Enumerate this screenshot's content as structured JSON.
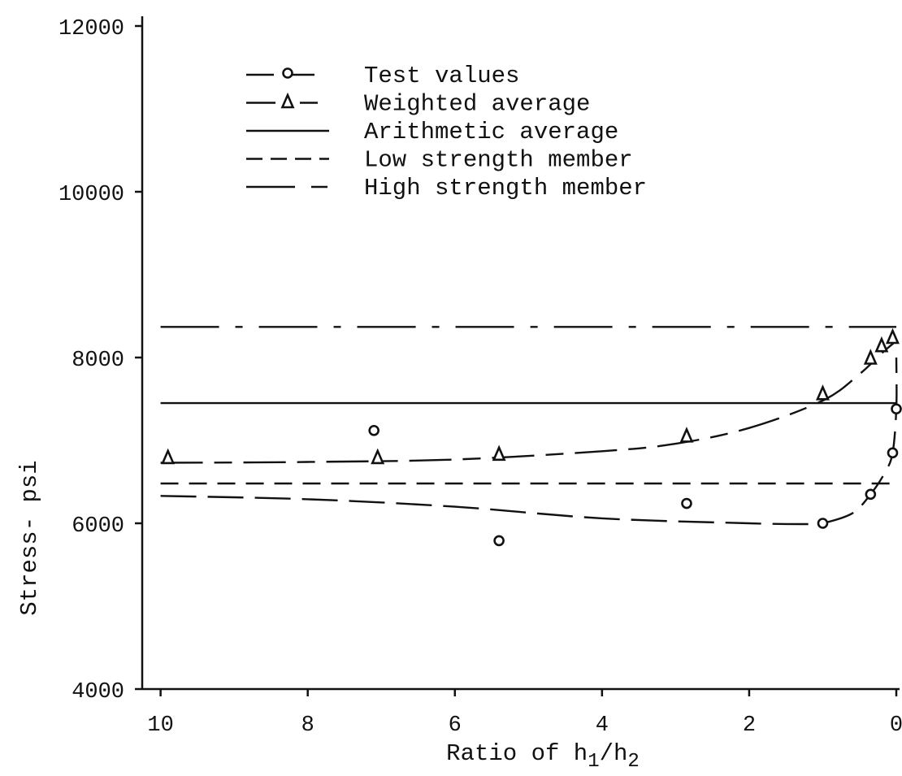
{
  "chart_data": {
    "type": "line",
    "xlabel": "Ratio of h",
    "xlabel_sub1": "1",
    "xlabel_mid": "/h",
    "xlabel_sub2": "2",
    "ylabel": "Stress- psi",
    "x_reversed": true,
    "xlim": [
      10.25,
      0
    ],
    "ylim": [
      4000,
      12000
    ],
    "xticks": [
      10,
      8,
      6,
      4,
      2,
      0
    ],
    "yticks": [
      4000,
      6000,
      8000,
      10000,
      12000
    ],
    "xtick_labels": [
      "10",
      "8",
      "6",
      "4",
      "2",
      "0"
    ],
    "ytick_labels": [
      "4000",
      "6000",
      "8000",
      "10000",
      "12000"
    ],
    "grid": false,
    "legend_position": "top-left",
    "series": [
      {
        "name": "Test values",
        "marker": "circle",
        "style": "long-dash",
        "points": [
          [
            7.1,
            7120
          ],
          [
            5.4,
            5790
          ],
          [
            2.85,
            6240
          ],
          [
            1.0,
            6000
          ],
          [
            0.35,
            6350
          ],
          [
            0.05,
            6850
          ],
          [
            0.0,
            7380
          ]
        ],
        "curve": [
          [
            10.0,
            6330
          ],
          [
            8.0,
            6290
          ],
          [
            6.0,
            6200
          ],
          [
            4.0,
            6060
          ],
          [
            2.0,
            6000
          ],
          [
            1.2,
            5990
          ],
          [
            1.0,
            6000
          ],
          [
            0.6,
            6120
          ],
          [
            0.35,
            6350
          ],
          [
            0.15,
            6620
          ],
          [
            0.05,
            6850
          ],
          [
            0.0,
            7380
          ],
          [
            0.0,
            8000
          ]
        ]
      },
      {
        "name": "Weighted average",
        "marker": "triangle",
        "style": "long-short-dash",
        "points": [
          [
            9.9,
            6800
          ],
          [
            7.05,
            6800
          ],
          [
            5.4,
            6840
          ],
          [
            2.85,
            7060
          ],
          [
            1.0,
            7570
          ],
          [
            0.35,
            8000
          ],
          [
            0.2,
            8150
          ],
          [
            0.05,
            8250
          ]
        ],
        "curve": [
          [
            10.0,
            6730
          ],
          [
            8.0,
            6740
          ],
          [
            6.0,
            6770
          ],
          [
            4.0,
            6870
          ],
          [
            3.0,
            6960
          ],
          [
            2.0,
            7150
          ],
          [
            1.0,
            7480
          ],
          [
            0.5,
            7800
          ],
          [
            0.2,
            8050
          ],
          [
            0.0,
            8200
          ]
        ]
      },
      {
        "name": "Arithmetic average",
        "style": "solid",
        "curve": [
          [
            10.0,
            7450
          ],
          [
            0.0,
            7450
          ]
        ]
      },
      {
        "name": "Low strength member",
        "style": "dashed",
        "curve": [
          [
            10.0,
            6480
          ],
          [
            0.0,
            6480
          ]
        ]
      },
      {
        "name": "High strength member",
        "style": "dash-dot",
        "curve": [
          [
            10.0,
            8370
          ],
          [
            0.0,
            8370
          ]
        ]
      }
    ]
  }
}
